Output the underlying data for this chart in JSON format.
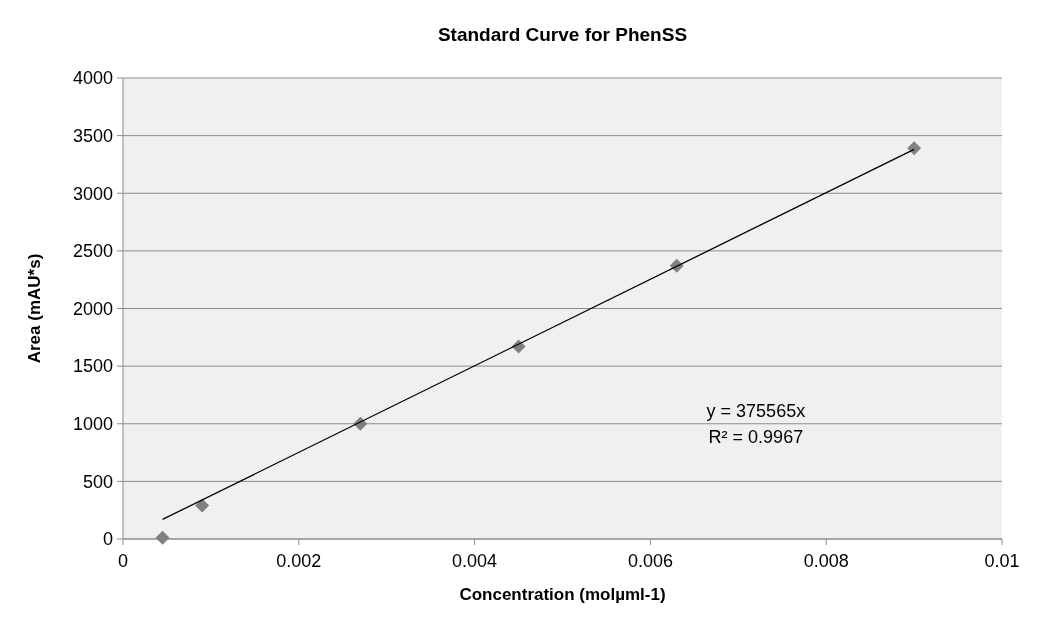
{
  "chart_data": {
    "type": "scatter",
    "title": "Standard Curve for PhenSS",
    "xlabel": "Concentration (molµml-1)",
    "ylabel": "Area (mAU*s)",
    "series": [
      {
        "color": "#808080",
        "marker": "diamond",
        "x": [
          0.00045,
          0.0009,
          0.0027,
          0.0045,
          0.0063,
          0.009
        ],
        "values": [
          10,
          290,
          1000,
          1670,
          2370,
          3390
        ]
      },
      {
        "type": "line",
        "color": "#000000",
        "marker": "none",
        "line_style": "solid",
        "x": [
          0.00045,
          0.009
        ],
        "values": [
          170,
          3380
        ]
      }
    ],
    "xlim": [
      0,
      0.01
    ],
    "xticks": [
      0,
      0.002,
      0.004,
      0.006,
      0.008,
      0.01
    ],
    "ylim": [
      0,
      4000
    ],
    "yticks": [
      0,
      500,
      1000,
      1500,
      2000,
      2500,
      3000,
      3500,
      4000
    ],
    "grid": "y",
    "annotations": [
      "y = 375565x",
      "R² = 0.9967"
    ]
  }
}
